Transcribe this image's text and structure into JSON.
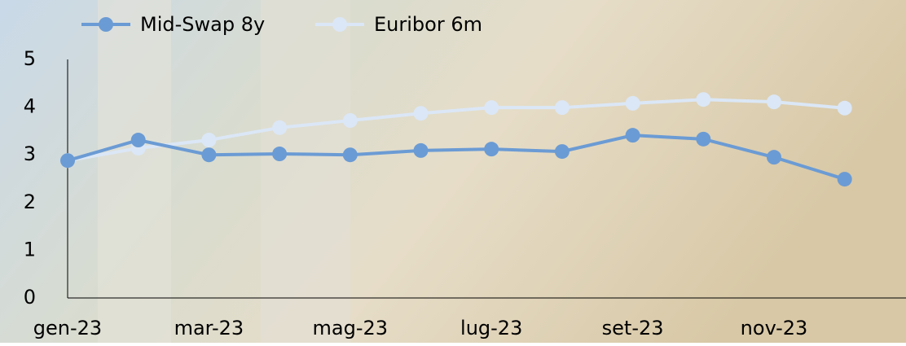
{
  "chart_data": {
    "type": "line",
    "categories": [
      "gen-23",
      null,
      "mar-23",
      null,
      "mag-23",
      null,
      "lug-23",
      null,
      "set-23",
      null,
      "nov-23",
      null
    ],
    "series": [
      {
        "name": "Mid-Swap 8y",
        "color": "#6b9bd4",
        "values": [
          2.88,
          3.31,
          3.0,
          3.02,
          3.0,
          3.09,
          3.12,
          3.07,
          3.41,
          3.33,
          2.95,
          2.49
        ]
      },
      {
        "name": "Euribor 6m",
        "color": "#dbe7f6",
        "values": [
          2.88,
          3.14,
          3.31,
          3.57,
          3.72,
          3.87,
          3.99,
          3.99,
          4.08,
          4.16,
          4.11,
          3.98
        ]
      }
    ],
    "ylim": [
      0,
      5
    ],
    "yticks": [
      0,
      1,
      2,
      3,
      4,
      5
    ],
    "grid": false,
    "legend": "top"
  }
}
